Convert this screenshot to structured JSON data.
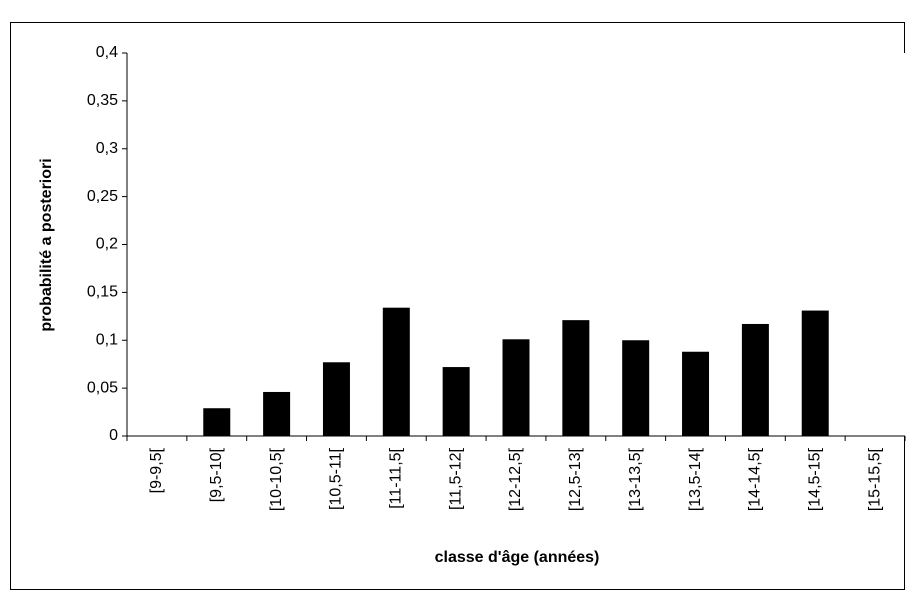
{
  "chart_data": {
    "type": "bar",
    "xlabel": "classe d'âge (années)",
    "ylabel": "probabilité a posteriori",
    "categories": [
      "[9-9,5[",
      "[9,5-10[",
      "[10-10,5[",
      "[10,5-11[",
      "[11-11,5[",
      "[11,5-12[",
      "[12-12,5[",
      "[12,5-13[",
      "[13-13,5[",
      "[13,5-14[",
      "[14-14,5[",
      "[14,5-15[",
      "[15-15,5["
    ],
    "values": [
      0,
      0.029,
      0.046,
      0.077,
      0.134,
      0.072,
      0.101,
      0.121,
      0.1,
      0.088,
      0.117,
      0.131,
      0
    ],
    "color": "#000000",
    "ylim": [
      0,
      0.4
    ],
    "yticks": [
      0,
      {
        "value": 0.05,
        "label": "0,05"
      },
      {
        "value": 0.1,
        "label": "0,1"
      },
      {
        "value": 0.15,
        "label": "0,15"
      },
      {
        "value": 0.2,
        "label": "0,2"
      },
      {
        "value": 0.25,
        "label": "0,25"
      },
      {
        "value": 0.3,
        "label": "0,3"
      },
      {
        "value": 0.35,
        "label": "0,35"
      },
      {
        "value": 0.4,
        "label": "0,4"
      }
    ],
    "grid": false
  }
}
